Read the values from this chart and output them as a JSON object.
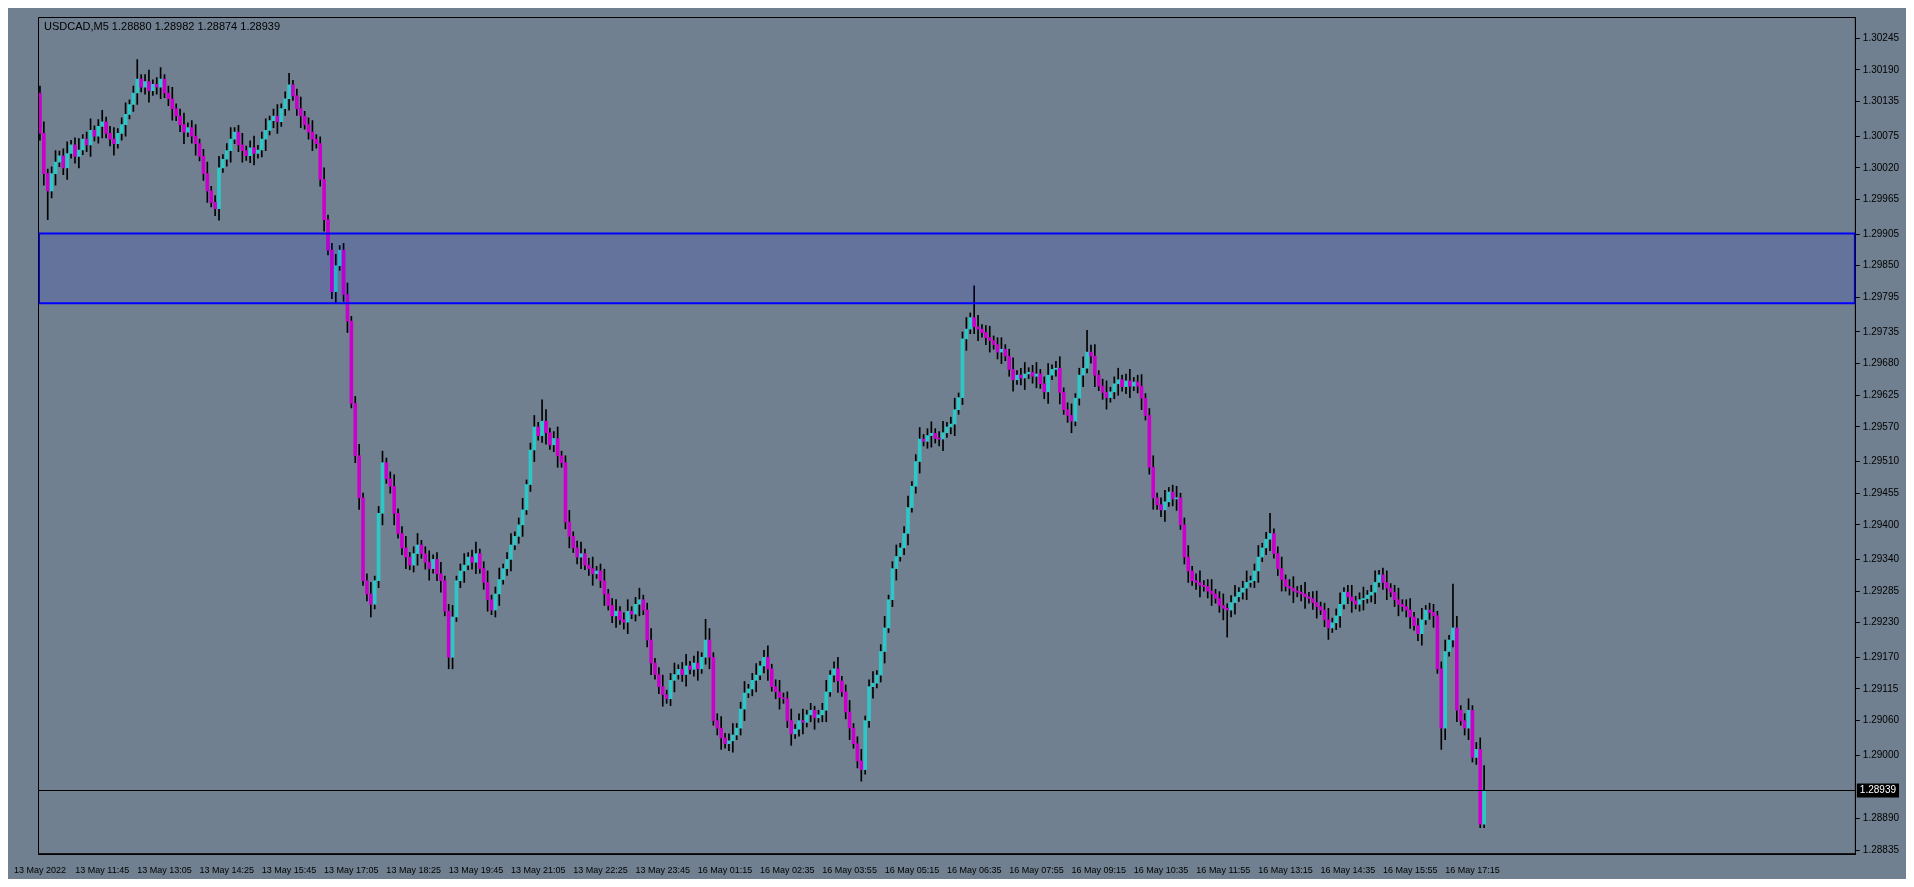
{
  "chart_data": {
    "type": "candlestick",
    "title": "USDCAD,M5 1.28880 1.28982 1.28874 1.28939",
    "categories": [
      "13 May 2022",
      null,
      null,
      null,
      null,
      null,
      null,
      null,
      null,
      null,
      null,
      null,
      null,
      null,
      null,
      null,
      "13 May 11:45",
      null,
      null,
      null,
      null,
      null,
      null,
      null,
      null,
      null,
      null,
      null,
      null,
      null,
      null,
      null,
      "13 May 13:05",
      null,
      null,
      null,
      null,
      null,
      null,
      null,
      null,
      null,
      null,
      null,
      null,
      null,
      null,
      null,
      "13 May 14:25",
      null,
      null,
      null,
      null,
      null,
      null,
      null,
      null,
      null,
      null,
      null,
      null,
      null,
      null,
      null,
      "13 May 15:45",
      null,
      null,
      null,
      null,
      null,
      null,
      null,
      null,
      null,
      null,
      null,
      null,
      null,
      null,
      null,
      "13 May 17:05",
      null,
      null,
      null,
      null,
      null,
      null,
      null,
      null,
      null,
      null,
      null,
      null,
      null,
      null,
      null,
      "13 May 18:25",
      null,
      null,
      null,
      null,
      null,
      null,
      null,
      null,
      null,
      null,
      null,
      null,
      null,
      null,
      null,
      "13 May 19:45",
      null,
      null,
      null,
      null,
      null,
      null,
      null,
      null,
      null,
      null,
      null,
      null,
      null,
      null,
      null,
      "13 May 21:05",
      null,
      null,
      null,
      null,
      null,
      null,
      null,
      null,
      null,
      null,
      null,
      null,
      null,
      null,
      null,
      "13 May 22:25",
      null,
      null,
      null,
      null,
      null,
      null,
      null,
      null,
      null,
      null,
      null,
      null,
      null,
      null,
      null,
      "13 May 23:45",
      null,
      null,
      null,
      null,
      null,
      null,
      null,
      null,
      null,
      null,
      null,
      null,
      null,
      null,
      null,
      "16 May 01:15",
      null,
      null,
      null,
      null,
      null,
      null,
      null,
      null,
      null,
      null,
      null,
      null,
      null,
      null,
      null,
      "16 May 02:35",
      null,
      null,
      null,
      null,
      null,
      null,
      null,
      null,
      null,
      null,
      null,
      null,
      null,
      null,
      null,
      "16 May 03:55",
      null,
      null,
      null,
      null,
      null,
      null,
      null,
      null,
      null,
      null,
      null,
      null,
      null,
      null,
      null,
      "16 May 05:15",
      null,
      null,
      null,
      null,
      null,
      null,
      null,
      null,
      null,
      null,
      null,
      null,
      null,
      null,
      null,
      "16 May 06:35",
      null,
      null,
      null,
      null,
      null,
      null,
      null,
      null,
      null,
      null,
      null,
      null,
      null,
      null,
      null,
      "16 May 07:55",
      null,
      null,
      null,
      null,
      null,
      null,
      null,
      null,
      null,
      null,
      null,
      null,
      null,
      null,
      null,
      "16 May 09:15",
      null,
      null,
      null,
      null,
      null,
      null,
      null,
      null,
      null,
      null,
      null,
      null,
      null,
      null,
      null,
      "16 May 10:35",
      null,
      null,
      null,
      null,
      null,
      null,
      null,
      null,
      null,
      null,
      null,
      null,
      null,
      null,
      null,
      "16 May 11:55",
      null,
      null,
      null,
      null,
      null,
      null,
      null,
      null,
      null,
      null,
      null,
      null,
      null,
      null,
      null,
      "16 May 13:15",
      null,
      null,
      null,
      null,
      null,
      null,
      null,
      null,
      null,
      null,
      null,
      null,
      null,
      null,
      null,
      "16 May 14:35",
      null,
      null,
      null,
      null,
      null,
      null,
      null,
      null,
      null,
      null,
      null,
      null,
      null,
      null,
      null,
      "16 May 15:55",
      null,
      null,
      null,
      null,
      null,
      null,
      null,
      null,
      null,
      null,
      null,
      null,
      null,
      null,
      null,
      "16 May 17:15",
      null,
      null,
      null,
      null,
      null,
      null,
      null,
      null,
      null,
      null,
      null,
      null,
      null,
      null,
      null,
      null,
      null,
      null,
      null,
      null,
      null,
      null,
      null,
      null,
      null,
      null,
      null,
      null,
      null,
      null,
      null,
      null,
      null,
      null,
      null,
      null,
      null,
      null,
      null,
      null,
      null,
      null,
      null,
      null,
      null,
      null,
      null,
      null,
      null,
      null,
      null,
      null,
      null,
      null,
      null,
      null,
      null,
      null,
      null,
      null,
      null,
      null,
      null,
      null,
      null,
      null,
      null,
      null,
      null,
      null,
      null,
      null,
      null,
      null,
      null,
      null,
      null,
      null,
      null,
      null,
      null,
      null,
      null,
      null,
      null,
      null,
      null,
      null,
      null,
      null,
      null,
      null,
      null,
      null,
      null,
      null,
      null,
      null
    ],
    "ohlc": [
      [
        1.3015,
        1.30162,
        1.30068,
        1.3008
      ],
      [
        1.3008,
        1.301,
        1.2999,
        1.3001
      ],
      [
        1.3001,
        1.30018,
        1.2993,
        1.2998
      ],
      [
        1.2998,
        1.30022,
        1.29968,
        1.3001
      ],
      [
        1.3001,
        1.3005,
        1.2999,
        1.3003
      ],
      [
        1.3003,
        1.30049,
        1.30022,
        1.30041
      ],
      [
        1.30041,
        1.30053,
        1.30008,
        1.3002
      ],
      [
        1.3002,
        1.30065,
        1.3,
        1.30045
      ],
      [
        1.30045,
        1.30068,
        1.30037,
        1.3006
      ],
      [
        1.3006,
        1.30072,
        1.30028,
        1.3004
      ],
      [
        1.3004,
        1.30071,
        1.3002,
        1.30051
      ],
      [
        1.30051,
        1.30078,
        1.30043,
        1.3007
      ],
      [
        1.3007,
        1.30082,
        1.30048,
        1.3006
      ],
      [
        1.3006,
        1.30105,
        1.3004,
        1.30085
      ],
      [
        1.30085,
        1.30093,
        1.30067,
        1.30075
      ],
      [
        1.30075,
        1.30104,
        1.30063,
        1.30092
      ],
      [
        1.30092,
        1.3012,
        1.30072,
        1.301
      ],
      [
        1.301,
        1.30108,
        1.30072,
        1.3008
      ],
      [
        1.3008,
        1.30092,
        1.30058,
        1.3007
      ],
      [
        1.3007,
        1.3009,
        1.30042,
        1.30062
      ],
      [
        1.30062,
        1.30088,
        1.30054,
        1.3008
      ],
      [
        1.3008,
        1.30107,
        1.30068,
        1.30095
      ],
      [
        1.30095,
        1.30133,
        1.30075,
        1.30113
      ],
      [
        1.30113,
        1.30138,
        1.30105,
        1.3013
      ],
      [
        1.3013,
        1.30162,
        1.30118,
        1.3015
      ],
      [
        1.3015,
        1.30208,
        1.3013,
        1.30174
      ],
      [
        1.30174,
        1.30182,
        1.30152,
        1.3016
      ],
      [
        1.3016,
        1.30182,
        1.30148,
        1.3017
      ],
      [
        1.3017,
        1.3019,
        1.30134,
        1.30154
      ],
      [
        1.30154,
        1.30173,
        1.30146,
        1.30165
      ],
      [
        1.30165,
        1.30177,
        1.30148,
        1.3016
      ],
      [
        1.3016,
        1.30194,
        1.3014,
        1.30174
      ],
      [
        1.30174,
        1.30182,
        1.30142,
        1.3015
      ],
      [
        1.3015,
        1.30162,
        1.30128,
        1.3014
      ],
      [
        1.3014,
        1.3016,
        1.30103,
        1.30123
      ],
      [
        1.30123,
        1.30131,
        1.30102,
        1.3011
      ],
      [
        1.3011,
        1.30122,
        1.30083,
        1.30095
      ],
      [
        1.30095,
        1.30115,
        1.30062,
        1.30082
      ],
      [
        1.30082,
        1.30098,
        1.30074,
        1.3009
      ],
      [
        1.3009,
        1.30102,
        1.30063,
        1.30075
      ],
      [
        1.30075,
        1.30095,
        1.30042,
        1.30062
      ],
      [
        1.30062,
        1.3007,
        1.30032,
        1.3004
      ],
      [
        1.3004,
        1.30052,
        1.29998,
        1.3001
      ],
      [
        1.3001,
        1.3003,
        1.2996,
        1.2998
      ],
      [
        1.2998,
        1.29988,
        1.29952,
        1.2996
      ],
      [
        1.2996,
        1.29972,
        1.29937,
        1.29949
      ],
      [
        1.29949,
        1.3004,
        1.29929,
        1.3002
      ],
      [
        1.3002,
        1.30043,
        1.30012,
        1.30035
      ],
      [
        1.30035,
        1.30062,
        1.30023,
        1.3005
      ],
      [
        1.3005,
        1.3009,
        1.3003,
        1.3007
      ],
      [
        1.3007,
        1.3009,
        1.30062,
        1.30082
      ],
      [
        1.30082,
        1.30094,
        1.30048,
        1.3006
      ],
      [
        1.3006,
        1.3008,
        1.3003,
        1.3005
      ],
      [
        1.3005,
        1.30058,
        1.30033,
        1.30041
      ],
      [
        1.30041,
        1.30067,
        1.30029,
        1.30055
      ],
      [
        1.30055,
        1.30075,
        1.30025,
        1.30045
      ],
      [
        1.30045,
        1.30059,
        1.30037,
        1.30051
      ],
      [
        1.30051,
        1.30082,
        1.30039,
        1.3007
      ],
      [
        1.3007,
        1.30105,
        1.3005,
        1.30085
      ],
      [
        1.30085,
        1.3011,
        1.30077,
        1.30102
      ],
      [
        1.30102,
        1.30122,
        1.3009,
        1.3011
      ],
      [
        1.3011,
        1.3013,
        1.3008,
        1.301
      ],
      [
        1.301,
        1.30131,
        1.30092,
        1.30123
      ],
      [
        1.30123,
        1.30152,
        1.30111,
        1.3014
      ],
      [
        1.3014,
        1.30184,
        1.3012,
        1.30164
      ],
      [
        1.30164,
        1.30172,
        1.30137,
        1.30145
      ],
      [
        1.30145,
        1.30157,
        1.30111,
        1.30123
      ],
      [
        1.30123,
        1.30143,
        1.3009,
        1.3011
      ],
      [
        1.3011,
        1.30118,
        1.30087,
        1.30095
      ],
      [
        1.30095,
        1.30107,
        1.3007,
        1.30082
      ],
      [
        1.30082,
        1.30102,
        1.3005,
        1.3007
      ],
      [
        1.3007,
        1.30078,
        1.30054,
        1.30062
      ],
      [
        1.30062,
        1.30074,
        1.29988,
        1.3
      ],
      [
        1.3,
        1.3002,
        1.2991,
        1.2993
      ],
      [
        1.2993,
        1.29938,
        1.29869,
        1.29877
      ],
      [
        1.29877,
        1.29889,
        1.29793,
        1.29805
      ],
      [
        1.29805,
        1.2987,
        1.29785,
        1.2985
      ],
      [
        1.2985,
        1.29885,
        1.29842,
        1.29877
      ],
      [
        1.29877,
        1.29889,
        1.29788,
        1.298
      ],
      [
        1.298,
        1.2982,
        1.29734,
        1.29754
      ],
      [
        1.29754,
        1.29762,
        1.29603,
        1.29611
      ],
      [
        1.29611,
        1.29623,
        1.29508,
        1.2952
      ],
      [
        1.2952,
        1.2954,
        1.29427,
        1.29447
      ],
      [
        1.29447,
        1.29455,
        1.29295,
        1.29303
      ],
      [
        1.29303,
        1.29315,
        1.29268,
        1.2928
      ],
      [
        1.2928,
        1.293,
        1.2924,
        1.29262
      ],
      [
        1.29262,
        1.29311,
        1.29254,
        1.29303
      ],
      [
        1.29303,
        1.29432,
        1.29291,
        1.2942
      ],
      [
        1.2942,
        1.29528,
        1.294,
        1.29508
      ],
      [
        1.29508,
        1.29516,
        1.29472,
        1.2948
      ],
      [
        1.2948,
        1.29492,
        1.29455,
        1.29467
      ],
      [
        1.29467,
        1.29487,
        1.294,
        1.2942
      ],
      [
        1.2942,
        1.29428,
        1.29377,
        1.29385
      ],
      [
        1.29385,
        1.29397,
        1.29348,
        1.2936
      ],
      [
        1.2936,
        1.2938,
        1.29324,
        1.29344
      ],
      [
        1.29344,
        1.29352,
        1.29322,
        1.2933
      ],
      [
        1.2933,
        1.29362,
        1.29318,
        1.2935
      ],
      [
        1.2935,
        1.29385,
        1.2933,
        1.29365
      ],
      [
        1.29365,
        1.29373,
        1.29342,
        1.2935
      ],
      [
        1.2935,
        1.29362,
        1.29323,
        1.29335
      ],
      [
        1.29335,
        1.29355,
        1.29304,
        1.29324
      ],
      [
        1.29324,
        1.29348,
        1.29316,
        1.2934
      ],
      [
        1.2934,
        1.29352,
        1.29303,
        1.29315
      ],
      [
        1.29315,
        1.29335,
        1.29283,
        1.29303
      ],
      [
        1.29303,
        1.29311,
        1.29242,
        1.2925
      ],
      [
        1.2925,
        1.29262,
        1.2915,
        1.2917
      ],
      [
        1.2917,
        1.2926,
        1.2915,
        1.2924
      ],
      [
        1.2924,
        1.29311,
        1.29232,
        1.29303
      ],
      [
        1.29303,
        1.29332,
        1.29291,
        1.2932
      ],
      [
        1.2932,
        1.2935,
        1.293,
        1.2933
      ],
      [
        1.2933,
        1.29352,
        1.29322,
        1.29344
      ],
      [
        1.29344,
        1.29356,
        1.29323,
        1.29335
      ],
      [
        1.29335,
        1.2937,
        1.29315,
        1.2935
      ],
      [
        1.2935,
        1.29358,
        1.29316,
        1.29324
      ],
      [
        1.29324,
        1.29336,
        1.29288,
        1.293
      ],
      [
        1.293,
        1.2932,
        1.2925,
        1.2927
      ],
      [
        1.2927,
        1.29278,
        1.29244,
        1.29252
      ],
      [
        1.29252,
        1.29292,
        1.2924,
        1.2928
      ],
      [
        1.2928,
        1.29325,
        1.2926,
        1.29305
      ],
      [
        1.29305,
        1.29332,
        1.29297,
        1.29324
      ],
      [
        1.29324,
        1.29352,
        1.29312,
        1.2934
      ],
      [
        1.2934,
        1.29385,
        1.2932,
        1.29365
      ],
      [
        1.29365,
        1.29388,
        1.29357,
        1.2938
      ],
      [
        1.2938,
        1.29412,
        1.29368,
        1.294
      ],
      [
        1.294,
        1.29446,
        1.2938,
        1.29426
      ],
      [
        1.29426,
        1.29478,
        1.29418,
        1.2947
      ],
      [
        1.2947,
        1.29542,
        1.29458,
        1.2953
      ],
      [
        1.2953,
        1.2959,
        1.2951,
        1.2957
      ],
      [
        1.2957,
        1.29578,
        1.29547,
        1.29555
      ],
      [
        1.29555,
        1.29617,
        1.29543,
        1.2958
      ],
      [
        1.2958,
        1.296,
        1.2954,
        1.2956
      ],
      [
        1.2956,
        1.29568,
        1.29531,
        1.29539
      ],
      [
        1.29539,
        1.29562,
        1.29527,
        1.2955
      ],
      [
        1.2955,
        1.2957,
        1.295,
        1.2952
      ],
      [
        1.2952,
        1.29528,
        1.295,
        1.29508
      ],
      [
        1.29508,
        1.2952,
        1.29393,
        1.29405
      ],
      [
        1.29405,
        1.29425,
        1.2936,
        1.2938
      ],
      [
        1.2938,
        1.29388,
        1.29352,
        1.2936
      ],
      [
        1.2936,
        1.29372,
        1.29332,
        1.29344
      ],
      [
        1.29344,
        1.2937,
        1.29324,
        1.2935
      ],
      [
        1.2935,
        1.29358,
        1.29322,
        1.2933
      ],
      [
        1.2933,
        1.29342,
        1.29312,
        1.29324
      ],
      [
        1.29324,
        1.29344,
        1.29295,
        1.29315
      ],
      [
        1.29315,
        1.29328,
        1.29307,
        1.2932
      ],
      [
        1.2932,
        1.29332,
        1.29291,
        1.29303
      ],
      [
        1.29303,
        1.29323,
        1.2926,
        1.2928
      ],
      [
        1.2928,
        1.29288,
        1.29252,
        1.2926
      ],
      [
        1.2926,
        1.29272,
        1.2923,
        1.29242
      ],
      [
        1.29242,
        1.2927,
        1.29222,
        1.2925
      ],
      [
        1.2925,
        1.29258,
        1.29227,
        1.29235
      ],
      [
        1.29235,
        1.29247,
        1.29219,
        1.29231
      ],
      [
        1.29231,
        1.2927,
        1.29211,
        1.2925
      ],
      [
        1.2925,
        1.29258,
        1.29237,
        1.29245
      ],
      [
        1.29245,
        1.29274,
        1.29233,
        1.29262
      ],
      [
        1.29262,
        1.2929,
        1.29242,
        1.2927
      ],
      [
        1.2927,
        1.29278,
        1.29244,
        1.29252
      ],
      [
        1.29252,
        1.29264,
        1.29188,
        1.292
      ],
      [
        1.292,
        1.2922,
        1.2914,
        1.2916
      ],
      [
        1.2916,
        1.29168,
        1.29132,
        1.2914
      ],
      [
        1.2914,
        1.29152,
        1.29107,
        1.29119
      ],
      [
        1.29119,
        1.29139,
        1.29085,
        1.29105
      ],
      [
        1.29105,
        1.29113,
        1.2909,
        1.29098
      ],
      [
        1.29098,
        1.29142,
        1.29086,
        1.2913
      ],
      [
        1.2913,
        1.2916,
        1.2911,
        1.2914
      ],
      [
        1.2914,
        1.29157,
        1.29132,
        1.29149
      ],
      [
        1.29149,
        1.29161,
        1.29128,
        1.2914
      ],
      [
        1.2914,
        1.29175,
        1.2912,
        1.29155
      ],
      [
        1.29155,
        1.29163,
        1.29141,
        1.29149
      ],
      [
        1.29149,
        1.29172,
        1.29137,
        1.2916
      ],
      [
        1.2916,
        1.2918,
        1.2913,
        1.2915
      ],
      [
        1.2915,
        1.29178,
        1.29142,
        1.2917
      ],
      [
        1.2917,
        1.29236,
        1.29158,
        1.292
      ],
      [
        1.292,
        1.2922,
        1.2915,
        1.2917
      ],
      [
        1.2917,
        1.29178,
        1.29052,
        1.2906
      ],
      [
        1.2906,
        1.29072,
        1.29035,
        1.29047
      ],
      [
        1.29047,
        1.29067,
        1.2901,
        1.2903
      ],
      [
        1.2903,
        1.29038,
        1.29012,
        1.2902
      ],
      [
        1.2902,
        1.29037,
        1.29008,
        1.29025
      ],
      [
        1.29025,
        1.29055,
        1.29005,
        1.29035
      ],
      [
        1.29035,
        1.29055,
        1.29027,
        1.29047
      ],
      [
        1.29047,
        1.29092,
        1.29035,
        1.2908
      ],
      [
        1.2908,
        1.29128,
        1.2906,
        1.29108
      ],
      [
        1.29108,
        1.29123,
        1.291,
        1.29115
      ],
      [
        1.29115,
        1.29142,
        1.29103,
        1.2913
      ],
      [
        1.2913,
        1.29159,
        1.2911,
        1.29139
      ],
      [
        1.29139,
        1.29163,
        1.29131,
        1.29155
      ],
      [
        1.29155,
        1.29182,
        1.29143,
        1.2917
      ],
      [
        1.2917,
        1.2919,
        1.2913,
        1.2915
      ],
      [
        1.2915,
        1.29158,
        1.29111,
        1.29119
      ],
      [
        1.29119,
        1.29131,
        1.29098,
        1.2911
      ],
      [
        1.2911,
        1.2913,
        1.2908,
        1.291
      ],
      [
        1.291,
        1.29108,
        1.2909,
        1.29098
      ],
      [
        1.29098,
        1.2911,
        1.29048,
        1.2906
      ],
      [
        1.2906,
        1.2908,
        1.29017,
        1.29037
      ],
      [
        1.29037,
        1.29053,
        1.29029,
        1.29045
      ],
      [
        1.29045,
        1.29072,
        1.29033,
        1.2906
      ],
      [
        1.2906,
        1.2908,
        1.29037,
        1.29057
      ],
      [
        1.29057,
        1.29078,
        1.29049,
        1.2907
      ],
      [
        1.2907,
        1.2909,
        1.29058,
        1.29078
      ],
      [
        1.29078,
        1.29085,
        1.29045,
        1.29065
      ],
      [
        1.29065,
        1.29078,
        1.29057,
        1.2907
      ],
      [
        1.2907,
        1.2909,
        1.29058,
        1.29078
      ],
      [
        1.29078,
        1.2913,
        1.29058,
        1.2911
      ],
      [
        1.2911,
        1.29147,
        1.29102,
        1.29139
      ],
      [
        1.29139,
        1.29162,
        1.29127,
        1.2915
      ],
      [
        1.2915,
        1.2917,
        1.29109,
        1.29129
      ],
      [
        1.29129,
        1.29137,
        1.29102,
        1.2911
      ],
      [
        1.2911,
        1.29122,
        1.29063,
        1.29075
      ],
      [
        1.29075,
        1.29095,
        1.29027,
        1.29047
      ],
      [
        1.29047,
        1.29055,
        1.29012,
        1.2902
      ],
      [
        1.2902,
        1.29032,
        1.28978,
        1.2899
      ],
      [
        1.2899,
        1.2901,
        1.28955,
        1.28975
      ],
      [
        1.28975,
        1.29068,
        1.28967,
        1.2906
      ],
      [
        1.2906,
        1.29131,
        1.29048,
        1.29119
      ],
      [
        1.29119,
        1.29145,
        1.29099,
        1.29125
      ],
      [
        1.29125,
        1.29147,
        1.29117,
        1.29139
      ],
      [
        1.29139,
        1.29192,
        1.29127,
        1.2918
      ],
      [
        1.2918,
        1.29241,
        1.2916,
        1.29221
      ],
      [
        1.29221,
        1.29278,
        1.29213,
        1.2927
      ],
      [
        1.2927,
        1.29336,
        1.29258,
        1.29324
      ],
      [
        1.29324,
        1.29365,
        1.29304,
        1.29345
      ],
      [
        1.29345,
        1.29368,
        1.29337,
        1.2936
      ],
      [
        1.2936,
        1.29397,
        1.29348,
        1.29385
      ],
      [
        1.29385,
        1.2945,
        1.29365,
        1.2943
      ],
      [
        1.2943,
        1.29475,
        1.29422,
        1.29467
      ],
      [
        1.29467,
        1.29522,
        1.29455,
        1.2951
      ],
      [
        1.2951,
        1.29569,
        1.2949,
        1.29549
      ],
      [
        1.29549,
        1.29557,
        1.29537,
        1.29545
      ],
      [
        1.29545,
        1.29567,
        1.29533,
        1.29555
      ],
      [
        1.29555,
        1.29579,
        1.29535,
        1.29559
      ],
      [
        1.29559,
        1.29567,
        1.29542,
        1.2955
      ],
      [
        1.2955,
        1.29562,
        1.29537,
        1.29549
      ],
      [
        1.29549,
        1.2958,
        1.29529,
        1.2956
      ],
      [
        1.2956,
        1.29578,
        1.29552,
        1.2957
      ],
      [
        1.2957,
        1.29587,
        1.29558,
        1.29575
      ],
      [
        1.29575,
        1.2962,
        1.29555,
        1.296
      ],
      [
        1.296,
        1.29629,
        1.29592,
        1.29621
      ],
      [
        1.29621,
        1.29735,
        1.29609,
        1.29723
      ],
      [
        1.29723,
        1.2976,
        1.29703,
        1.2974
      ],
      [
        1.2974,
        1.29768,
        1.29732,
        1.2976
      ],
      [
        1.2976,
        1.29815,
        1.29732,
        1.29744
      ],
      [
        1.29744,
        1.29764,
        1.2972,
        1.2974
      ],
      [
        1.2974,
        1.29748,
        1.29726,
        1.29734
      ],
      [
        1.29734,
        1.29746,
        1.29713,
        1.29725
      ],
      [
        1.29725,
        1.29745,
        1.297,
        1.2972
      ],
      [
        1.2972,
        1.29728,
        1.29705,
        1.29713
      ],
      [
        1.29713,
        1.29725,
        1.29688,
        1.297
      ],
      [
        1.297,
        1.29725,
        1.2968,
        1.29705
      ],
      [
        1.29705,
        1.29713,
        1.29685,
        1.29693
      ],
      [
        1.29693,
        1.29705,
        1.29658,
        1.2967
      ],
      [
        1.2967,
        1.2969,
        1.29632,
        1.29652
      ],
      [
        1.29652,
        1.29668,
        1.29644,
        1.2966
      ],
      [
        1.2966,
        1.29672,
        1.29643,
        1.29655
      ],
      [
        1.29655,
        1.29682,
        1.29635,
        1.29662
      ],
      [
        1.29662,
        1.29673,
        1.29654,
        1.29665
      ],
      [
        1.29665,
        1.29677,
        1.29646,
        1.29658
      ],
      [
        1.29658,
        1.29682,
        1.29638,
        1.29662
      ],
      [
        1.29662,
        1.2967,
        1.29637,
        1.29645
      ],
      [
        1.29645,
        1.29657,
        1.29619,
        1.29631
      ],
      [
        1.29631,
        1.2968,
        1.29611,
        1.2966
      ],
      [
        1.2966,
        1.29678,
        1.29652,
        1.2967
      ],
      [
        1.2967,
        1.29684,
        1.29658,
        1.29672
      ],
      [
        1.29672,
        1.29692,
        1.2961,
        1.2963
      ],
      [
        1.2963,
        1.29638,
        1.29592,
        1.296
      ],
      [
        1.296,
        1.29612,
        1.29578,
        1.2959
      ],
      [
        1.2959,
        1.2961,
        1.2956,
        1.2958
      ],
      [
        1.2958,
        1.29628,
        1.29572,
        1.2962
      ],
      [
        1.2962,
        1.29672,
        1.29608,
        1.2966
      ],
      [
        1.2966,
        1.29692,
        1.2964,
        1.29672
      ],
      [
        1.29672,
        1.29738,
        1.29664,
        1.297
      ],
      [
        1.297,
        1.29712,
        1.29681,
        1.29693
      ],
      [
        1.29693,
        1.29713,
        1.2964,
        1.2966
      ],
      [
        1.2966,
        1.29668,
        1.29633,
        1.29641
      ],
      [
        1.29641,
        1.29653,
        1.29618,
        1.2963
      ],
      [
        1.2963,
        1.2965,
        1.29601,
        1.29621
      ],
      [
        1.29621,
        1.29639,
        1.29613,
        1.29631
      ],
      [
        1.29631,
        1.29657,
        1.29619,
        1.29645
      ],
      [
        1.29645,
        1.29672,
        1.29625,
        1.29652
      ],
      [
        1.29652,
        1.2966,
        1.29632,
        1.2964
      ],
      [
        1.2964,
        1.29662,
        1.29628,
        1.2965
      ],
      [
        1.2965,
        1.2967,
        1.29621,
        1.29641
      ],
      [
        1.29641,
        1.29656,
        1.29633,
        1.29648
      ],
      [
        1.29648,
        1.2966,
        1.29629,
        1.29641
      ],
      [
        1.29641,
        1.29661,
        1.296,
        1.2962
      ],
      [
        1.2962,
        1.29628,
        1.29582,
        1.2959
      ],
      [
        1.2959,
        1.29602,
        1.29488,
        1.295
      ],
      [
        1.295,
        1.2952,
        1.29427,
        1.29447
      ],
      [
        1.29447,
        1.29455,
        1.29427,
        1.29435
      ],
      [
        1.29435,
        1.29447,
        1.29414,
        1.29426
      ],
      [
        1.29426,
        1.2946,
        1.29406,
        1.2944
      ],
      [
        1.2944,
        1.29465,
        1.29432,
        1.29457
      ],
      [
        1.29457,
        1.29469,
        1.29433,
        1.29445
      ],
      [
        1.29445,
        1.29467,
        1.29425,
        1.29447
      ],
      [
        1.29447,
        1.29455,
        1.29392,
        1.294
      ],
      [
        1.294,
        1.29412,
        1.29332,
        1.29344
      ],
      [
        1.29344,
        1.29364,
        1.293,
        1.2932
      ],
      [
        1.2932,
        1.29328,
        1.29295,
        1.29303
      ],
      [
        1.29303,
        1.29315,
        1.29288,
        1.293
      ],
      [
        1.293,
        1.2932,
        1.29275,
        1.29295
      ],
      [
        1.29295,
        1.29303,
        1.29285,
        1.29293
      ],
      [
        1.29293,
        1.29305,
        1.29273,
        1.29285
      ],
      [
        1.29285,
        1.29305,
        1.2926,
        1.2928
      ],
      [
        1.2928,
        1.29288,
        1.29264,
        1.29272
      ],
      [
        1.29272,
        1.29284,
        1.29248,
        1.2926
      ],
      [
        1.2926,
        1.2928,
        1.29235,
        1.29255
      ],
      [
        1.29255,
        1.29263,
        1.29205,
        1.29252
      ],
      [
        1.29252,
        1.29277,
        1.2924,
        1.29265
      ],
      [
        1.29265,
        1.29295,
        1.29245,
        1.29275
      ],
      [
        1.29275,
        1.29291,
        1.29267,
        1.29283
      ],
      [
        1.29283,
        1.29302,
        1.29271,
        1.2929
      ],
      [
        1.2929,
        1.2932,
        1.2927,
        1.293
      ],
      [
        1.293,
        1.29311,
        1.29292,
        1.29303
      ],
      [
        1.29303,
        1.29332,
        1.29291,
        1.2932
      ],
      [
        1.2932,
        1.29364,
        1.293,
        1.29344
      ],
      [
        1.29344,
        1.29368,
        1.29336,
        1.2936
      ],
      [
        1.2936,
        1.29387,
        1.29348,
        1.29375
      ],
      [
        1.29375,
        1.2942,
        1.29355,
        1.29385
      ],
      [
        1.29385,
        1.29393,
        1.29342,
        1.2935
      ],
      [
        1.2935,
        1.29362,
        1.29312,
        1.29324
      ],
      [
        1.29324,
        1.29344,
        1.29285,
        1.29305
      ],
      [
        1.29305,
        1.29313,
        1.29285,
        1.29293
      ],
      [
        1.29293,
        1.29305,
        1.29278,
        1.2929
      ],
      [
        1.2929,
        1.2931,
        1.29265,
        1.29285
      ],
      [
        1.29285,
        1.29293,
        1.29275,
        1.29283
      ],
      [
        1.29283,
        1.29295,
        1.29268,
        1.2928
      ],
      [
        1.2928,
        1.293,
        1.29255,
        1.29275
      ],
      [
        1.29275,
        1.29283,
        1.29264,
        1.29272
      ],
      [
        1.29272,
        1.29284,
        1.29253,
        1.29265
      ],
      [
        1.29265,
        1.29285,
        1.29238,
        1.29258
      ],
      [
        1.29258,
        1.29266,
        1.29244,
        1.29252
      ],
      [
        1.29252,
        1.29264,
        1.29223,
        1.29235
      ],
      [
        1.29235,
        1.29255,
        1.29201,
        1.29221
      ],
      [
        1.29221,
        1.29238,
        1.29213,
        1.2923
      ],
      [
        1.2923,
        1.29254,
        1.29218,
        1.29242
      ],
      [
        1.29242,
        1.29282,
        1.29222,
        1.29262
      ],
      [
        1.29262,
        1.29291,
        1.29254,
        1.29283
      ],
      [
        1.29283,
        1.29295,
        1.29263,
        1.29275
      ],
      [
        1.29275,
        1.29295,
        1.29248,
        1.29268
      ],
      [
        1.29268,
        1.29276,
        1.29254,
        1.29262
      ],
      [
        1.29262,
        1.29282,
        1.2925,
        1.2927
      ],
      [
        1.2927,
        1.29292,
        1.29252,
        1.29272
      ],
      [
        1.29272,
        1.29286,
        1.29264,
        1.29278
      ],
      [
        1.29278,
        1.29295,
        1.29266,
        1.29283
      ],
      [
        1.29283,
        1.2932,
        1.29263,
        1.293
      ],
      [
        1.293,
        1.29321,
        1.29292,
        1.29313
      ],
      [
        1.29313,
        1.29325,
        1.29288,
        1.293
      ],
      [
        1.293,
        1.2932,
        1.2927,
        1.2929
      ],
      [
        1.2929,
        1.29298,
        1.29275,
        1.29283
      ],
      [
        1.29283,
        1.29295,
        1.29258,
        1.2927
      ],
      [
        1.2927,
        1.2929,
        1.29242,
        1.29262
      ],
      [
        1.29262,
        1.2927,
        1.2925,
        1.29258
      ],
      [
        1.29258,
        1.2927,
        1.2924,
        1.29252
      ],
      [
        1.29252,
        1.29272,
        1.2922,
        1.2924
      ],
      [
        1.2924,
        1.29248,
        1.29217,
        1.29225
      ],
      [
        1.29225,
        1.29237,
        1.29199,
        1.29211
      ],
      [
        1.29211,
        1.29255,
        1.29191,
        1.29235
      ],
      [
        1.29235,
        1.2926,
        1.29227,
        1.29252
      ],
      [
        1.29252,
        1.29264,
        1.29236,
        1.29248
      ],
      [
        1.29248,
        1.29262,
        1.29222,
        1.29242
      ],
      [
        1.29242,
        1.2925,
        1.29142,
        1.2915
      ],
      [
        1.2915,
        1.29162,
        1.2901,
        1.29047
      ],
      [
        1.29047,
        1.292,
        1.29027,
        1.2918
      ],
      [
        1.2918,
        1.29208,
        1.29172,
        1.292
      ],
      [
        1.292,
        1.29297,
        1.29188,
        1.29221
      ],
      [
        1.29221,
        1.29241,
        1.29058,
        1.29078
      ],
      [
        1.29078,
        1.29086,
        1.29052,
        1.2906
      ],
      [
        1.2906,
        1.29072,
        1.29035,
        1.29047
      ],
      [
        1.29047,
        1.29098,
        1.29027,
        1.29078
      ],
      [
        1.29078,
        1.29086,
        1.28988,
        1.28996
      ],
      [
        1.28996,
        1.29022,
        1.28984,
        1.2901
      ],
      [
        1.2901,
        1.2903,
        1.28874,
        1.2888
      ],
      [
        1.2888,
        1.28982,
        1.28874,
        1.28939
      ],
      null,
      null,
      null,
      null,
      null,
      null,
      null,
      null,
      null,
      null,
      null,
      null,
      null,
      null,
      null,
      null,
      null,
      null,
      null,
      null,
      null,
      null,
      null,
      null,
      null,
      null,
      null,
      null,
      null,
      null,
      null,
      null,
      null,
      null,
      null,
      null,
      null,
      null,
      null,
      null,
      null,
      null,
      null,
      null,
      null,
      null,
      null,
      null,
      null,
      null,
      null,
      null,
      null,
      null,
      null,
      null,
      null,
      null,
      null,
      null,
      null,
      null,
      null,
      null,
      null,
      null,
      null,
      null,
      null,
      null,
      null,
      null,
      null,
      null,
      null,
      null,
      null,
      null,
      null,
      null,
      null,
      null,
      null,
      null,
      null,
      null,
      null,
      null,
      null,
      null,
      null,
      null,
      null,
      null,
      null
    ],
    "ylim": [
      1.28828,
      1.30282
    ],
    "yticks": [
      {
        "value": 1.28835,
        "label": "1.28835"
      },
      {
        "value": 1.2889,
        "label": "1.28890"
      },
      {
        "value": 1.29,
        "label": "1.29000"
      },
      {
        "value": 1.2906,
        "label": "1.29060"
      },
      {
        "value": 1.29115,
        "label": "1.29115"
      },
      {
        "value": 1.2917,
        "label": "1.29170"
      },
      {
        "value": 1.2923,
        "label": "1.29230"
      },
      {
        "value": 1.29285,
        "label": "1.29285"
      },
      {
        "value": 1.2934,
        "label": "1.29340"
      },
      {
        "value": 1.294,
        "label": "1.29400"
      },
      {
        "value": 1.29455,
        "label": "1.29455"
      },
      {
        "value": 1.2951,
        "label": "1.29510"
      },
      {
        "value": 1.2957,
        "label": "1.29570"
      },
      {
        "value": 1.29625,
        "label": "1.29625"
      },
      {
        "value": 1.2968,
        "label": "1.29680"
      },
      {
        "value": 1.29735,
        "label": "1.29735"
      },
      {
        "value": 1.29795,
        "label": "1.29795"
      },
      {
        "value": 1.2985,
        "label": "1.29850"
      },
      {
        "value": 1.29905,
        "label": "1.29905"
      },
      {
        "value": 1.29965,
        "label": "1.29965"
      },
      {
        "value": 1.3002,
        "label": "1.30020"
      },
      {
        "value": 1.30075,
        "label": "1.30075"
      },
      {
        "value": 1.30135,
        "label": "1.30135"
      },
      {
        "value": 1.3019,
        "label": "1.30190"
      },
      {
        "value": 1.30245,
        "label": "1.30245"
      }
    ],
    "ref_lines": [
      {
        "axis": "y",
        "value": 1.28939,
        "label": "1.28939",
        "color": "#000000"
      }
    ],
    "bands": [
      {
        "axis": "y",
        "from": 1.29785,
        "to": 1.29906,
        "color": "#0000ff"
      }
    ]
  }
}
